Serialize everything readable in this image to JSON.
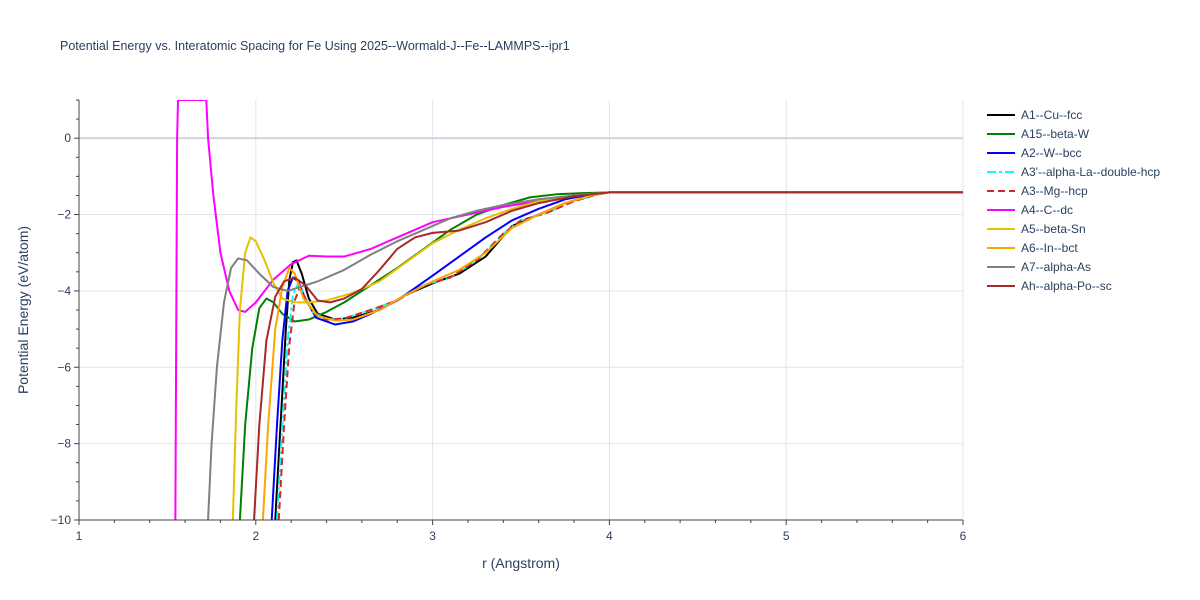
{
  "chart_data": {
    "type": "line",
    "title": "Potential Energy vs. Interatomic Spacing for Fe Using 2025--Wormald-J--Fe--LAMMPS--ipr1",
    "xlabel": "r (Angstrom)",
    "ylabel": "Potential Energy (eV/atom)",
    "xlim": [
      1,
      6
    ],
    "ylim": [
      -10,
      1
    ],
    "x_ticks": [
      "1",
      "2",
      "3",
      "4",
      "5",
      "6"
    ],
    "y_ticks": [
      "0",
      "−2",
      "−4",
      "−6",
      "−8",
      "−10"
    ],
    "x_tick_values": [
      1,
      2,
      3,
      4,
      5,
      6
    ],
    "y_tick_values": [
      0,
      -2,
      -4,
      -6,
      -8,
      -10
    ],
    "grid": true,
    "legend_position": "right",
    "series": [
      {
        "name": "A1--Cu--fcc",
        "color": "#000000",
        "dash": "solid",
        "points": [
          [
            2.11,
            -10
          ],
          [
            2.14,
            -7.5
          ],
          [
            2.17,
            -5.0
          ],
          [
            2.19,
            -3.7
          ],
          [
            2.21,
            -3.25
          ],
          [
            2.23,
            -3.2
          ],
          [
            2.26,
            -3.55
          ],
          [
            2.3,
            -4.2
          ],
          [
            2.35,
            -4.6
          ],
          [
            2.45,
            -4.75
          ],
          [
            2.55,
            -4.7
          ],
          [
            2.7,
            -4.5
          ],
          [
            2.85,
            -4.1
          ],
          [
            3.0,
            -3.8
          ],
          [
            3.15,
            -3.55
          ],
          [
            3.3,
            -3.1
          ],
          [
            3.45,
            -2.3
          ],
          [
            3.6,
            -2.0
          ],
          [
            3.75,
            -1.7
          ],
          [
            3.9,
            -1.5
          ],
          [
            4.0,
            -1.42
          ],
          [
            6.0,
            -1.42
          ]
        ]
      },
      {
        "name": "A15--beta-W",
        "color": "#008000",
        "dash": "solid",
        "points": [
          [
            1.91,
            -10
          ],
          [
            1.94,
            -7.5
          ],
          [
            1.98,
            -5.5
          ],
          [
            2.02,
            -4.45
          ],
          [
            2.06,
            -4.2
          ],
          [
            2.1,
            -4.3
          ],
          [
            2.15,
            -4.6
          ],
          [
            2.22,
            -4.8
          ],
          [
            2.3,
            -4.75
          ],
          [
            2.4,
            -4.55
          ],
          [
            2.5,
            -4.3
          ],
          [
            2.65,
            -3.85
          ],
          [
            2.8,
            -3.4
          ],
          [
            2.95,
            -2.9
          ],
          [
            3.1,
            -2.4
          ],
          [
            3.25,
            -2.0
          ],
          [
            3.4,
            -1.75
          ],
          [
            3.55,
            -1.55
          ],
          [
            3.7,
            -1.47
          ],
          [
            3.85,
            -1.44
          ],
          [
            4.0,
            -1.42
          ],
          [
            6.0,
            -1.42
          ]
        ]
      },
      {
        "name": "A2--W--bcc",
        "color": "#0000ff",
        "dash": "solid",
        "points": [
          [
            2.09,
            -10
          ],
          [
            2.12,
            -7.5
          ],
          [
            2.15,
            -5.3
          ],
          [
            2.18,
            -4.0
          ],
          [
            2.21,
            -3.65
          ],
          [
            2.24,
            -3.75
          ],
          [
            2.28,
            -4.2
          ],
          [
            2.34,
            -4.7
          ],
          [
            2.45,
            -4.88
          ],
          [
            2.55,
            -4.8
          ],
          [
            2.65,
            -4.6
          ],
          [
            2.8,
            -4.25
          ],
          [
            3.0,
            -3.6
          ],
          [
            3.15,
            -3.1
          ],
          [
            3.3,
            -2.6
          ],
          [
            3.45,
            -2.15
          ],
          [
            3.6,
            -1.85
          ],
          [
            3.75,
            -1.6
          ],
          [
            3.9,
            -1.47
          ],
          [
            4.0,
            -1.42
          ],
          [
            6.0,
            -1.42
          ]
        ]
      },
      {
        "name": "A3'--alpha-La--double-hcp",
        "color": "#00ffff",
        "dash": "dashdot",
        "points": [
          [
            2.12,
            -10
          ],
          [
            2.15,
            -7.5
          ],
          [
            2.18,
            -5.3
          ],
          [
            2.21,
            -4.1
          ],
          [
            2.24,
            -3.8
          ],
          [
            2.27,
            -4.1
          ],
          [
            2.32,
            -4.55
          ],
          [
            2.4,
            -4.75
          ],
          [
            2.5,
            -4.72
          ],
          [
            2.65,
            -4.5
          ],
          [
            2.8,
            -4.25
          ],
          [
            2.95,
            -3.85
          ],
          [
            3.1,
            -3.65
          ],
          [
            3.25,
            -3.2
          ],
          [
            3.4,
            -2.5
          ],
          [
            3.5,
            -2.15
          ],
          [
            3.65,
            -1.95
          ],
          [
            3.8,
            -1.65
          ],
          [
            3.95,
            -1.45
          ],
          [
            4.0,
            -1.42
          ],
          [
            6.0,
            -1.42
          ]
        ]
      },
      {
        "name": "A3--Mg--hcp",
        "color": "#d62728",
        "dash": "dash",
        "points": [
          [
            2.13,
            -10
          ],
          [
            2.16,
            -7.5
          ],
          [
            2.19,
            -5.4
          ],
          [
            2.22,
            -4.25
          ],
          [
            2.25,
            -3.9
          ],
          [
            2.28,
            -4.2
          ],
          [
            2.33,
            -4.6
          ],
          [
            2.4,
            -4.75
          ],
          [
            2.5,
            -4.72
          ],
          [
            2.65,
            -4.5
          ],
          [
            2.8,
            -4.25
          ],
          [
            2.95,
            -3.85
          ],
          [
            3.1,
            -3.65
          ],
          [
            3.25,
            -3.2
          ],
          [
            3.4,
            -2.5
          ],
          [
            3.5,
            -2.15
          ],
          [
            3.65,
            -1.95
          ],
          [
            3.8,
            -1.65
          ],
          [
            3.95,
            -1.45
          ],
          [
            4.0,
            -1.42
          ],
          [
            6.0,
            -1.42
          ]
        ]
      },
      {
        "name": "A4--C--dc",
        "color": "#ff00ff",
        "dash": "solid",
        "points": [
          [
            1.545,
            -10
          ],
          [
            1.55,
            -5
          ],
          [
            1.555,
            0
          ],
          [
            1.56,
            1.0
          ],
          [
            1.72,
            1.0
          ],
          [
            1.73,
            0
          ],
          [
            1.76,
            -1.5
          ],
          [
            1.8,
            -3.0
          ],
          [
            1.85,
            -4.0
          ],
          [
            1.9,
            -4.5
          ],
          [
            1.94,
            -4.55
          ],
          [
            2.0,
            -4.3
          ],
          [
            2.1,
            -3.7
          ],
          [
            2.2,
            -3.3
          ],
          [
            2.3,
            -3.08
          ],
          [
            2.4,
            -3.1
          ],
          [
            2.5,
            -3.1
          ],
          [
            2.65,
            -2.9
          ],
          [
            2.8,
            -2.6
          ],
          [
            3.0,
            -2.2
          ],
          [
            3.2,
            -2.0
          ],
          [
            3.4,
            -1.8
          ],
          [
            3.6,
            -1.65
          ],
          [
            3.8,
            -1.5
          ],
          [
            4.0,
            -1.42
          ],
          [
            6.0,
            -1.42
          ]
        ]
      },
      {
        "name": "A5--beta-Sn",
        "color": "#e5c100",
        "dash": "solid",
        "points": [
          [
            1.87,
            -10
          ],
          [
            1.89,
            -7.0
          ],
          [
            1.91,
            -4.5
          ],
          [
            1.94,
            -3.0
          ],
          [
            1.97,
            -2.6
          ],
          [
            2.0,
            -2.7
          ],
          [
            2.05,
            -3.2
          ],
          [
            2.1,
            -3.8
          ],
          [
            2.15,
            -4.2
          ],
          [
            2.22,
            -4.3
          ],
          [
            2.3,
            -4.3
          ],
          [
            2.4,
            -4.25
          ],
          [
            2.55,
            -4.05
          ],
          [
            2.7,
            -3.75
          ],
          [
            2.85,
            -3.25
          ],
          [
            3.0,
            -2.75
          ],
          [
            3.15,
            -2.4
          ],
          [
            3.3,
            -2.1
          ],
          [
            3.45,
            -1.85
          ],
          [
            3.6,
            -1.65
          ],
          [
            3.8,
            -1.5
          ],
          [
            4.0,
            -1.42
          ],
          [
            6.0,
            -1.42
          ]
        ]
      },
      {
        "name": "A6--In--bct",
        "color": "#ffa500",
        "dash": "solid",
        "points": [
          [
            2.04,
            -10
          ],
          [
            2.07,
            -7.5
          ],
          [
            2.11,
            -5.0
          ],
          [
            2.15,
            -3.9
          ],
          [
            2.19,
            -3.4
          ],
          [
            2.22,
            -3.55
          ],
          [
            2.27,
            -4.2
          ],
          [
            2.35,
            -4.65
          ],
          [
            2.45,
            -4.78
          ],
          [
            2.55,
            -4.75
          ],
          [
            2.7,
            -4.5
          ],
          [
            2.85,
            -4.1
          ],
          [
            3.0,
            -3.75
          ],
          [
            3.15,
            -3.45
          ],
          [
            3.3,
            -3.0
          ],
          [
            3.45,
            -2.35
          ],
          [
            3.6,
            -2.0
          ],
          [
            3.75,
            -1.7
          ],
          [
            3.9,
            -1.5
          ],
          [
            4.0,
            -1.42
          ],
          [
            6.0,
            -1.42
          ]
        ]
      },
      {
        "name": "A7--alpha-As",
        "color": "#808080",
        "dash": "solid",
        "points": [
          [
            1.73,
            -10
          ],
          [
            1.75,
            -8.0
          ],
          [
            1.78,
            -6.0
          ],
          [
            1.82,
            -4.3
          ],
          [
            1.86,
            -3.4
          ],
          [
            1.9,
            -3.15
          ],
          [
            1.95,
            -3.2
          ],
          [
            2.02,
            -3.55
          ],
          [
            2.1,
            -3.9
          ],
          [
            2.18,
            -4.0
          ],
          [
            2.25,
            -3.9
          ],
          [
            2.35,
            -3.75
          ],
          [
            2.5,
            -3.45
          ],
          [
            2.65,
            -3.05
          ],
          [
            2.8,
            -2.7
          ],
          [
            2.95,
            -2.4
          ],
          [
            3.1,
            -2.1
          ],
          [
            3.25,
            -1.9
          ],
          [
            3.4,
            -1.75
          ],
          [
            3.6,
            -1.6
          ],
          [
            3.8,
            -1.5
          ],
          [
            4.0,
            -1.42
          ],
          [
            6.0,
            -1.42
          ]
        ]
      },
      {
        "name": "Ah--alpha-Po--sc",
        "color": "#a52a2a",
        "dash": "solid",
        "points": [
          [
            1.99,
            -10
          ],
          [
            2.02,
            -7.5
          ],
          [
            2.06,
            -5.3
          ],
          [
            2.11,
            -4.15
          ],
          [
            2.16,
            -3.75
          ],
          [
            2.22,
            -3.65
          ],
          [
            2.28,
            -3.85
          ],
          [
            2.35,
            -4.25
          ],
          [
            2.42,
            -4.3
          ],
          [
            2.5,
            -4.2
          ],
          [
            2.6,
            -3.95
          ],
          [
            2.7,
            -3.45
          ],
          [
            2.8,
            -2.9
          ],
          [
            2.9,
            -2.6
          ],
          [
            3.0,
            -2.48
          ],
          [
            3.15,
            -2.42
          ],
          [
            3.3,
            -2.2
          ],
          [
            3.45,
            -1.9
          ],
          [
            3.6,
            -1.7
          ],
          [
            3.8,
            -1.52
          ],
          [
            4.0,
            -1.42
          ],
          [
            6.0,
            -1.42
          ]
        ]
      }
    ]
  }
}
